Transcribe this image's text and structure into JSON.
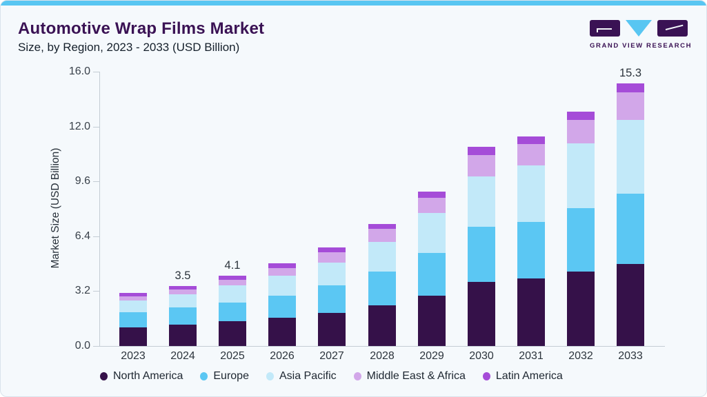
{
  "card": {
    "title": "Automotive Wrap Films Market",
    "subtitle": "Size, by Region, 2023 - 2033 (USD Billion)",
    "accent_color": "#58c6f2"
  },
  "logo": {
    "text": "GRAND VIEW RESEARCH",
    "dark_color": "#3a1254",
    "blue_color": "#58c6f2"
  },
  "chart_data": {
    "type": "bar",
    "stacked": true,
    "title": "Automotive Wrap Films Market Size, by Region, 2023 - 2033 (USD Billion)",
    "xlabel": "",
    "ylabel": "Market Size (USD Billion)",
    "ylim": [
      0,
      16
    ],
    "ytick_labels": [
      "0.0",
      "3.2",
      "6.4",
      "9.6",
      "12.0",
      "16.0"
    ],
    "grid": false,
    "legend_position": "bottom",
    "categories": [
      "2023",
      "2024",
      "2025",
      "2026",
      "2027",
      "2028",
      "2029",
      "2030",
      "2031",
      "2032",
      "2033"
    ],
    "series": [
      {
        "name": "North America",
        "color": "#351149",
        "values": [
          1.1,
          1.25,
          1.45,
          1.65,
          1.94,
          2.38,
          2.95,
          3.75,
          3.93,
          4.33,
          4.8
        ]
      },
      {
        "name": "Europe",
        "color": "#5bc7f3",
        "values": [
          0.85,
          1.0,
          1.1,
          1.3,
          1.6,
          1.96,
          2.49,
          3.19,
          3.32,
          3.72,
          4.1
        ]
      },
      {
        "name": "Asia Pacific",
        "color": "#c2e9f9",
        "values": [
          0.72,
          0.75,
          1.0,
          1.15,
          1.34,
          1.74,
          2.3,
          2.95,
          3.27,
          3.75,
          4.27
        ]
      },
      {
        "name": "Middle East & Africa",
        "color": "#d2a7e9",
        "values": [
          0.24,
          0.28,
          0.32,
          0.45,
          0.6,
          0.77,
          0.9,
          1.23,
          1.25,
          1.39,
          1.62
        ]
      },
      {
        "name": "Latin America",
        "color": "#a54cd8",
        "values": [
          0.2,
          0.22,
          0.23,
          0.26,
          0.28,
          0.25,
          0.36,
          0.5,
          0.46,
          0.48,
          0.51
        ]
      }
    ],
    "totals": [
      3.1,
      3.5,
      4.1,
      4.8,
      5.8,
      7.1,
      9.0,
      11.6,
      12.2,
      13.7,
      15.3
    ],
    "total_labels": {
      "2024": "3.5",
      "2025": "4.1",
      "2033": "15.3"
    }
  }
}
